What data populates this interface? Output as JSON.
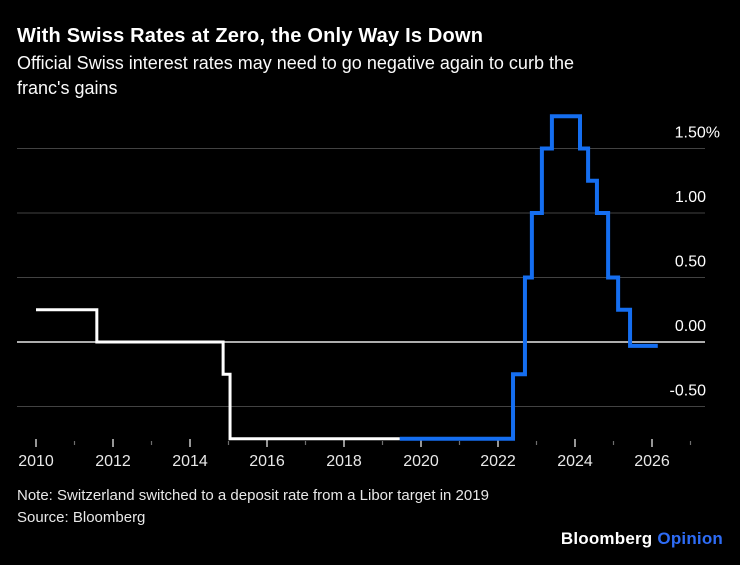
{
  "header": {
    "title": "With Swiss Rates at Zero, the Only Way Is Down",
    "subtitle_lines": [
      "Official Swiss interest rates may need to go negative again to curb the",
      "franc's gains"
    ]
  },
  "footer": {
    "note": "Note: Switzerland switched to a deposit rate from a Libor target in 2019",
    "source": "Source: Bloomberg",
    "logo_brand": "Bloomberg",
    "logo_product": "Opinion"
  },
  "colors": {
    "background": "#000000",
    "title_text": "#ffffff",
    "grid": "#424242",
    "zero_line": "#c6c6c6",
    "y_tick_label": "#ffffff",
    "x_tick_label": "#e8e8e8",
    "major_tick": "#bdbdbd",
    "minor_tick": "#6e6e6e",
    "logo_blue": "#2e6cf6"
  },
  "chart_data": {
    "type": "line",
    "subtype": "step-after",
    "title": "With Swiss Rates at Zero, the Only Way Is Down",
    "subtitle": "Official Swiss interest rates may need to go negative again to curb the franc's gains",
    "xlabel": "",
    "ylabel": "",
    "unit": "%",
    "xlim": [
      2010,
      2026.3
    ],
    "ylim": [
      -0.85,
      1.85
    ],
    "grid": "horizontal-only",
    "legend": "none",
    "y_ticks": [
      {
        "label": "1.50%",
        "value": 1.5
      },
      {
        "label": "1.00",
        "value": 1.0
      },
      {
        "label": "0.50",
        "value": 0.5
      },
      {
        "label": "0.00",
        "value": 0.0
      },
      {
        "label": "-0.50",
        "value": -0.5
      }
    ],
    "zero_line_value": 0,
    "x_axis": {
      "start_year": 2010,
      "major_ticks": [
        {
          "label": "2010",
          "year": 2010
        },
        {
          "label": "2012",
          "year": 2012
        },
        {
          "label": "2014",
          "year": 2014
        },
        {
          "label": "2016",
          "year": 2016
        },
        {
          "label": "2018",
          "year": 2018
        },
        {
          "label": "2020",
          "year": 2020
        },
        {
          "label": "2022",
          "year": 2022
        },
        {
          "label": "2024",
          "year": 2024
        },
        {
          "label": "2026",
          "year": 2026
        }
      ],
      "minor_tick_years": [
        2011,
        2013,
        2015,
        2017,
        2019,
        2021,
        2023,
        2025,
        2027
      ]
    },
    "series": [
      {
        "name": "libor-target-until-2019",
        "color": "#ffffff",
        "width": 3,
        "step": "after",
        "points": [
          [
            2010.0,
            0.25
          ],
          [
            2011.58,
            0.0
          ],
          [
            2014.86,
            -0.25
          ],
          [
            2015.04,
            -0.75
          ]
        ],
        "end_x": 2019.45
      },
      {
        "name": "deposit-rate-from-2019",
        "color": "#156ef0",
        "width": 4,
        "step": "after",
        "points": [
          [
            2019.45,
            -0.75
          ],
          [
            2022.39,
            -0.25
          ],
          [
            2022.7,
            0.5
          ],
          [
            2022.88,
            1.0
          ],
          [
            2023.14,
            1.5
          ],
          [
            2023.4,
            1.75
          ],
          [
            2024.13,
            1.5
          ],
          [
            2024.34,
            1.25
          ],
          [
            2024.57,
            1.0
          ],
          [
            2024.86,
            0.5
          ],
          [
            2025.12,
            0.25
          ],
          [
            2025.43,
            -0.03
          ]
        ],
        "end_x": 2026.15
      }
    ]
  }
}
